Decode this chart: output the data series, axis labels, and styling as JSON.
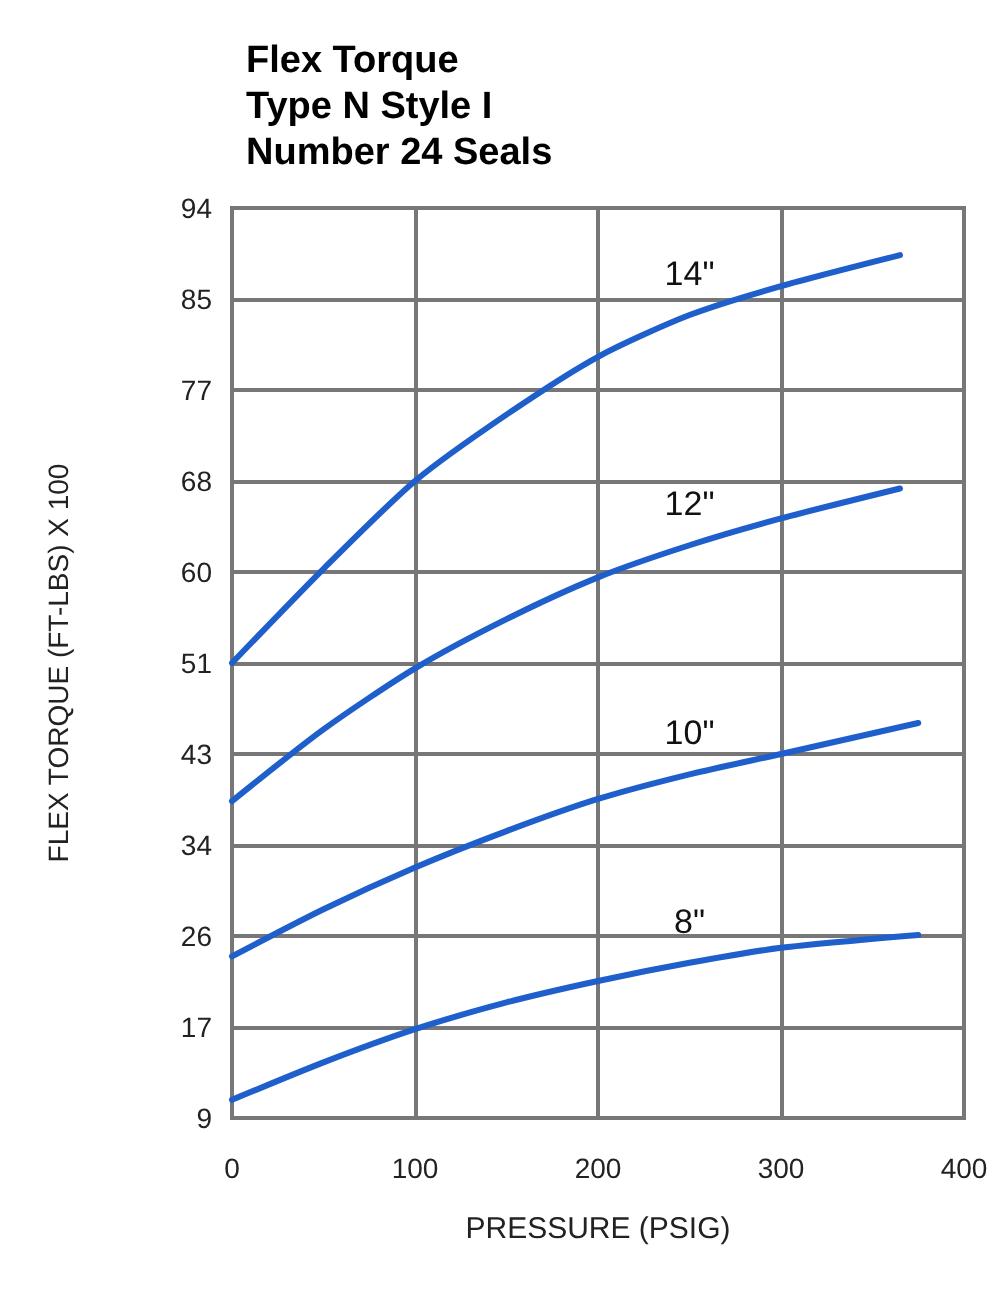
{
  "chart_data": {
    "type": "line",
    "title": "Flex Torque\nType N Style I\nNumber 24 Seals",
    "xlabel": "PRESSURE (PSIG)",
    "ylabel": "FLEX TORQUE (FT-LBS) X 100",
    "xlim": [
      0,
      400
    ],
    "xticks": [
      0,
      100,
      200,
      300,
      400
    ],
    "ylim": [
      9,
      94
    ],
    "yticks": [
      9,
      {
        "value": 17.5,
        "label": "17"
      },
      26,
      {
        "value": 34.5,
        "label": "34"
      },
      43,
      {
        "value": 51.5,
        "label": "51"
      },
      60,
      {
        "value": 68.5,
        "label": "68"
      },
      77,
      {
        "value": 85.5,
        "label": "85"
      },
      94
    ],
    "grid": true,
    "marker": "none",
    "line_style": "solid",
    "series": [
      {
        "name": "14\"",
        "color": "#1f5fcc",
        "x": [
          0,
          50,
          100,
          150,
          200,
          250,
          300,
          365
        ],
        "values": [
          51.5,
          60.3,
          68.5,
          74.7,
          80.1,
          84,
          86.7,
          89.6
        ]
      },
      {
        "name": "12\"",
        "color": "#1f5fcc",
        "x": [
          0,
          50,
          100,
          150,
          200,
          250,
          300,
          365
        ],
        "values": [
          38.6,
          45.3,
          51,
          55.6,
          59.5,
          62.5,
          65,
          67.8
        ]
      },
      {
        "name": "10\"",
        "color": "#1f5fcc",
        "x": [
          0,
          50,
          100,
          150,
          200,
          250,
          300,
          375
        ],
        "values": [
          24.1,
          28.5,
          32.4,
          35.8,
          38.8,
          41.1,
          43,
          45.9
        ]
      },
      {
        "name": "8\"",
        "color": "#1f5fcc",
        "x": [
          0,
          50,
          100,
          150,
          200,
          250,
          300,
          375
        ],
        "values": [
          10.7,
          14.2,
          17.3,
          19.8,
          21.8,
          23.5,
          24.9,
          26.1
        ]
      }
    ]
  }
}
